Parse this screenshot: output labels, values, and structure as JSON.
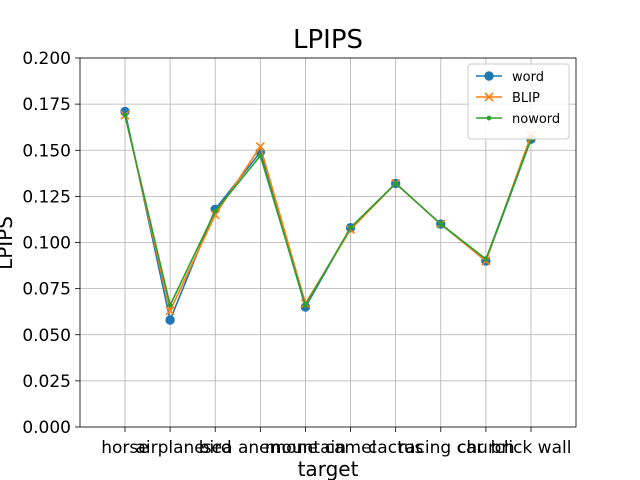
{
  "chart_data": {
    "type": "line",
    "title": "LPIPS",
    "xlabel": "target",
    "ylabel": "LPIPS",
    "categories": [
      "horse",
      "airplane",
      "bird",
      "sea anemone",
      "mountain",
      "camel",
      "cactus",
      "racing car",
      "church",
      "brick wall"
    ],
    "ylim": [
      0.0,
      0.2
    ],
    "yticks": [
      "0.000",
      "0.025",
      "0.050",
      "0.075",
      "0.100",
      "0.125",
      "0.150",
      "0.175",
      "0.200"
    ],
    "grid": true,
    "legend_position": "top-right",
    "series": [
      {
        "name": "word",
        "color": "#1f77b4",
        "marker": "circle",
        "values": [
          0.171,
          0.058,
          0.118,
          0.149,
          0.065,
          0.108,
          0.132,
          0.11,
          0.09,
          0.156
        ]
      },
      {
        "name": "BLIP",
        "color": "#ff7f0e",
        "marker": "x",
        "values": [
          0.169,
          0.063,
          0.115,
          0.152,
          0.067,
          0.107,
          0.132,
          0.11,
          0.09,
          0.158
        ]
      },
      {
        "name": "noword",
        "color": "#2ca02c",
        "marker": "dot",
        "values": [
          0.169,
          0.066,
          0.117,
          0.147,
          0.066,
          0.108,
          0.132,
          0.11,
          0.091,
          0.156
        ]
      }
    ]
  }
}
